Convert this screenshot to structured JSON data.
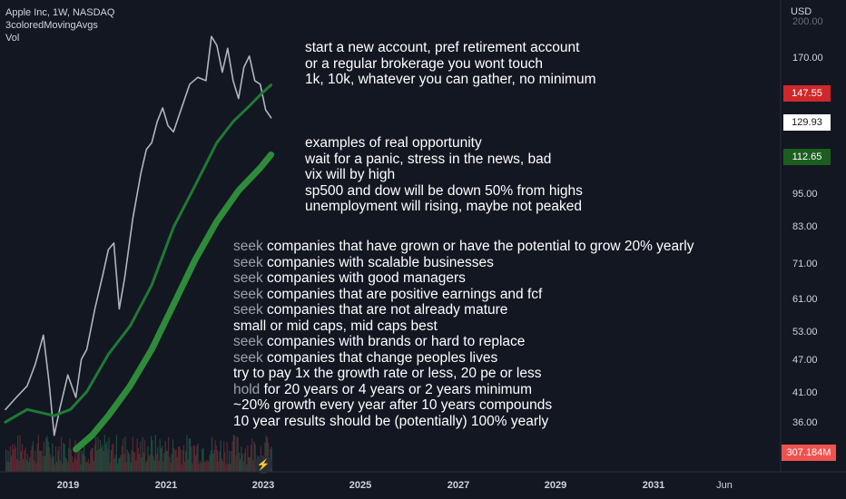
{
  "legend": {
    "title": "Apple Inc, 1W, NASDAQ",
    "indicator": "3coloredMovingAvgs",
    "volume": "Vol"
  },
  "axis": {
    "currency": "USD",
    "y_ticks": [
      "200.00",
      "170.00",
      "95.00",
      "83.00",
      "71.00",
      "61.00",
      "53.00",
      "47.00",
      "41.00",
      "36.00"
    ],
    "x_ticks": [
      "2019",
      "2021",
      "2023",
      "2025",
      "2027",
      "2029",
      "2031",
      "Jun"
    ]
  },
  "badges": {
    "ma_red": "147.55",
    "last_price": "129.93",
    "ma_green": "112.65",
    "volume": "307.184M"
  },
  "notes": {
    "block1": [
      "start a new account, pref retirement account",
      "or a regular brokerage you wont touch",
      "1k, 10k, whatever you can gather, no minimum"
    ],
    "block2": [
      "examples of real opportunity",
      "wait for a panic, stress in the news, bad",
      "vix will by high",
      "sp500 and dow will be down 50% from highs",
      "unemployment will rising, maybe not peaked"
    ],
    "block3": [
      {
        "pre": "seek",
        "text": " companies that have grown or have the potential to grow 20% yearly"
      },
      {
        "pre": "seek",
        "text": " companies with scalable businesses"
      },
      {
        "pre": "seek",
        "text": " companies with good managers"
      },
      {
        "pre": "seek",
        "text": " companies that are positive earnings and fcf"
      },
      {
        "pre": "seek",
        "text": " companies that are not already mature"
      },
      {
        "pre": "",
        "text": "small or mid caps, mid caps best"
      },
      {
        "pre": "seek",
        "text": " companies with brands or hard to replace"
      },
      {
        "pre": "seek",
        "text": " companies that change peoples lives"
      },
      {
        "pre": "",
        "text": "try to pay 1x the growth rate or less, 20 pe or less"
      },
      {
        "pre": "hold",
        "text": " for 20 years or 4 years or 2 years minimum"
      },
      {
        "pre": "",
        "text": "~20% growth every year after 10 years compounds"
      },
      {
        "pre": "",
        "text": "10 year results should be (potentially) 100% yearly"
      }
    ]
  },
  "chart_data": {
    "type": "line",
    "y_scale": "log",
    "ylim": [
      33,
      205
    ],
    "xlim": [
      2018.0,
      2032.4
    ],
    "grid": false,
    "series": [
      {
        "color": "#b2b5be",
        "x": [
          2018.1,
          2018.3,
          2018.5,
          2018.65,
          2018.8,
          2018.9,
          2019.0,
          2019.1,
          2019.25,
          2019.4,
          2019.5,
          2019.6,
          2019.75,
          2019.9,
          2020.0,
          2020.1,
          2020.2,
          2020.3,
          2020.45,
          2020.6,
          2020.7,
          2020.8,
          2020.9,
          2021.0,
          2021.1,
          2021.2,
          2021.35,
          2021.5,
          2021.65,
          2021.8,
          2021.9,
          2022.0,
          2022.1,
          2022.2,
          2022.3,
          2022.4,
          2022.5,
          2022.6,
          2022.7,
          2022.8,
          2022.9,
          2023.0
        ],
        "values": [
          42,
          44,
          46,
          50,
          56,
          47,
          38,
          42,
          48,
          44,
          51,
          53,
          62,
          71,
          78,
          80,
          62,
          70,
          88,
          105,
          115,
          118,
          128,
          135,
          126,
          123,
          135,
          148,
          152,
          150,
          178,
          172,
          155,
          170,
          150,
          140,
          158,
          165,
          150,
          148,
          134,
          129.93
        ]
      },
      {
        "color": "#1e7a34",
        "x": [
          2018.1,
          2018.5,
          2019.0,
          2019.3,
          2019.6,
          2020.0,
          2020.4,
          2020.8,
          2021.2,
          2021.6,
          2022.0,
          2022.3,
          2022.6,
          2022.8,
          2023.0
        ],
        "values": [
          40,
          42,
          41,
          42,
          45,
          52,
          58,
          68,
          85,
          100,
          118,
          128,
          136,
          142,
          147.55
        ]
      },
      {
        "color": "#2e8b3a",
        "x": [
          2019.4,
          2019.7,
          2020.0,
          2020.4,
          2020.8,
          2021.2,
          2021.6,
          2022.0,
          2022.4,
          2022.8,
          2023.0
        ],
        "values": [
          36,
          38,
          41,
          46,
          53,
          63,
          75,
          87,
          98,
          107,
          112.65
        ]
      }
    ]
  }
}
